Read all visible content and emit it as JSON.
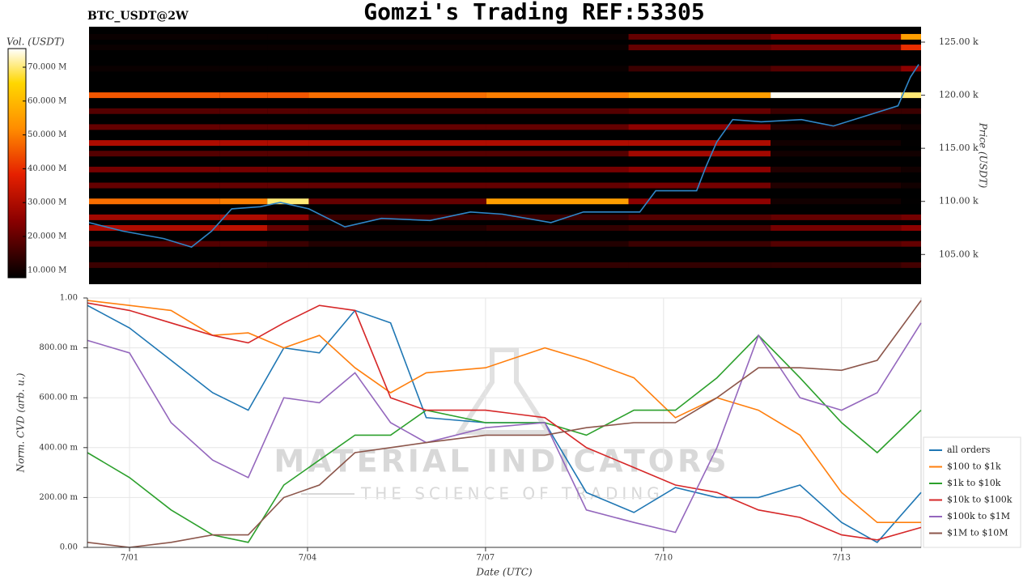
{
  "watermark": {
    "title": "MATERIAL INDICATORS",
    "subtitle": "THE SCIENCE OF TRADING"
  },
  "chart_data": [
    {
      "type": "heatmap",
      "title": "Gomzi's Trading REF:53305",
      "subtitle": "BTC_USDT@2W",
      "xlim": [
        -0.71,
        13.34
      ],
      "ylabel": "Price (USDT)",
      "ylim": [
        102.2,
        126.45
      ],
      "yticks": [
        {
          "value": 105,
          "label": "105.00 k"
        },
        {
          "value": 110,
          "label": "110.00 k"
        },
        {
          "value": 115,
          "label": "115.00 k"
        },
        {
          "value": 120,
          "label": "120.00 k"
        },
        {
          "value": 125,
          "label": "125.00 k"
        }
      ],
      "colorbar": {
        "label": "Vol. (USDT)",
        "lim": [
          7.8,
          75.5
        ],
        "ticks": [
          {
            "value": 10,
            "label": "10.000 M"
          },
          {
            "value": 20,
            "label": "20.000 M"
          },
          {
            "value": 30,
            "label": "30.000 M"
          },
          {
            "value": 40,
            "label": "40.000 M"
          },
          {
            "value": 50,
            "label": "50.000 M"
          },
          {
            "value": 60,
            "label": "60.000 M"
          },
          {
            "value": 70,
            "label": "70.000 M"
          }
        ]
      },
      "x_edges": [
        -0.71,
        1.5,
        2.3,
        3.0,
        6.0,
        8.4,
        10.8,
        13.0,
        13.34
      ],
      "levels": [
        {
          "price": 104,
          "values": [
            15,
            15,
            14,
            14,
            14,
            14,
            14,
            16
          ]
        },
        {
          "price": 106,
          "values": [
            18,
            18,
            15,
            12,
            12,
            15,
            18,
            20
          ]
        },
        {
          "price": 107.5,
          "values": [
            30,
            32,
            20,
            12,
            14,
            16,
            22,
            25
          ]
        },
        {
          "price": 108.5,
          "values": [
            28,
            30,
            25,
            15,
            15,
            18,
            20,
            22
          ]
        },
        {
          "price": 110,
          "values": [
            48,
            50,
            70,
            20,
            55,
            25,
            10,
            8
          ]
        },
        {
          "price": 111.5,
          "values": [
            20,
            20,
            20,
            20,
            20,
            22,
            12,
            10
          ]
        },
        {
          "price": 113,
          "values": [
            22,
            22,
            22,
            22,
            22,
            25,
            12,
            10
          ]
        },
        {
          "price": 114.5,
          "values": [
            18,
            18,
            18,
            18,
            18,
            28,
            10,
            10
          ]
        },
        {
          "price": 115.5,
          "values": [
            30,
            30,
            30,
            30,
            30,
            30,
            10,
            8
          ]
        },
        {
          "price": 117,
          "values": [
            20,
            20,
            20,
            20,
            20,
            25,
            12,
            10
          ]
        },
        {
          "price": 118.5,
          "values": [
            18,
            18,
            18,
            18,
            18,
            20,
            15,
            15
          ]
        },
        {
          "price": 120,
          "values": [
            45,
            45,
            45,
            48,
            50,
            55,
            75,
            70
          ]
        },
        {
          "price": 122.5,
          "values": [
            9,
            9,
            9,
            9,
            9,
            15,
            18,
            25
          ]
        },
        {
          "price": 124.5,
          "values": [
            9,
            9,
            9,
            9,
            9,
            20,
            22,
            40
          ]
        },
        {
          "price": 125.5,
          "values": [
            9,
            9,
            9,
            9,
            9,
            20,
            25,
            55
          ]
        }
      ],
      "line": {
        "color": "#2f86c8",
        "x": [
          -0.71,
          -0.14,
          0.55,
          1.02,
          1.36,
          1.7,
          2.18,
          2.52,
          3.0,
          3.61,
          4.23,
          5.05,
          5.73,
          6.27,
          7.09,
          7.64,
          8.59,
          8.86,
          9.55,
          9.71,
          9.89,
          10.16,
          10.64,
          11.32,
          11.86,
          12.55,
          12.95,
          13.16,
          13.3
        ],
        "values": [
          108.0,
          107.2,
          106.5,
          105.7,
          107.2,
          109.3,
          109.5,
          109.9,
          109.3,
          107.6,
          108.4,
          108.2,
          109.0,
          108.8,
          108.0,
          109.0,
          109.0,
          111.0,
          111.0,
          113.3,
          115.6,
          117.7,
          117.5,
          117.7,
          117.1,
          118.3,
          119.0,
          121.7,
          122.9
        ]
      }
    },
    {
      "type": "line",
      "xlabel": "Date (UTC)",
      "ylabel": "Norm. CVD (arb. u.)",
      "xlim": [
        -0.71,
        13.34
      ],
      "xticks": [
        {
          "value": 0,
          "label": "7/01"
        },
        {
          "value": 3,
          "label": "7/04"
        },
        {
          "value": 6,
          "label": "7/07"
        },
        {
          "value": 9,
          "label": "7/10"
        },
        {
          "value": 12,
          "label": "7/13"
        }
      ],
      "ylim": [
        0,
        1
      ],
      "yticks": [
        {
          "value": 0,
          "label": "0.00"
        },
        {
          "value": 0.2,
          "label": "200.00 m"
        },
        {
          "value": 0.4,
          "label": "400.00 m"
        },
        {
          "value": 0.6,
          "label": "600.00 m"
        },
        {
          "value": 0.8,
          "label": "800.00 m"
        },
        {
          "value": 1,
          "label": "1.00"
        }
      ],
      "grid": true,
      "legend": "lower right",
      "x": [
        -0.71,
        0,
        0.7,
        1.4,
        2.0,
        2.6,
        3.2,
        3.8,
        4.4,
        5.0,
        6.0,
        7.0,
        7.7,
        8.5,
        9.2,
        9.9,
        10.6,
        11.3,
        12.0,
        12.6,
        13.34
      ],
      "series": [
        {
          "name": "all orders",
          "color": "#1f77b4",
          "values": [
            0.97,
            0.88,
            0.75,
            0.62,
            0.55,
            0.8,
            0.78,
            0.95,
            0.9,
            0.52,
            0.5,
            0.5,
            0.22,
            0.14,
            0.24,
            0.2,
            0.2,
            0.25,
            0.1,
            0.02,
            0.22
          ]
        },
        {
          "name": "$100 to $1k",
          "color": "#ff7f0e",
          "values": [
            0.99,
            0.97,
            0.95,
            0.85,
            0.86,
            0.8,
            0.85,
            0.72,
            0.62,
            0.7,
            0.72,
            0.8,
            0.75,
            0.68,
            0.52,
            0.6,
            0.55,
            0.45,
            0.22,
            0.1,
            0.1
          ]
        },
        {
          "name": "$1k to $10k",
          "color": "#2ca02c",
          "values": [
            0.38,
            0.28,
            0.15,
            0.05,
            0.02,
            0.25,
            0.35,
            0.45,
            0.45,
            0.55,
            0.5,
            0.5,
            0.45,
            0.55,
            0.55,
            0.68,
            0.85,
            0.68,
            0.5,
            0.38,
            0.55
          ]
        },
        {
          "name": "$10k to $100k",
          "color": "#d62728",
          "values": [
            0.98,
            0.95,
            0.9,
            0.85,
            0.82,
            0.9,
            0.97,
            0.95,
            0.6,
            0.55,
            0.55,
            0.52,
            0.4,
            0.32,
            0.25,
            0.22,
            0.15,
            0.12,
            0.05,
            0.03,
            0.08
          ]
        },
        {
          "name": "$100k to $1M",
          "color": "#9467bd",
          "values": [
            0.83,
            0.78,
            0.5,
            0.35,
            0.28,
            0.6,
            0.58,
            0.7,
            0.5,
            0.42,
            0.48,
            0.5,
            0.15,
            0.1,
            0.06,
            0.4,
            0.85,
            0.6,
            0.55,
            0.62,
            0.9
          ]
        },
        {
          "name": "$1M to $10M",
          "color": "#8c564b",
          "values": [
            0.02,
            0,
            0.02,
            0.05,
            0.05,
            0.2,
            0.25,
            0.38,
            0.4,
            0.42,
            0.45,
            0.45,
            0.48,
            0.5,
            0.5,
            0.6,
            0.72,
            0.72,
            0.71,
            0.75,
            0.99
          ]
        }
      ]
    }
  ]
}
